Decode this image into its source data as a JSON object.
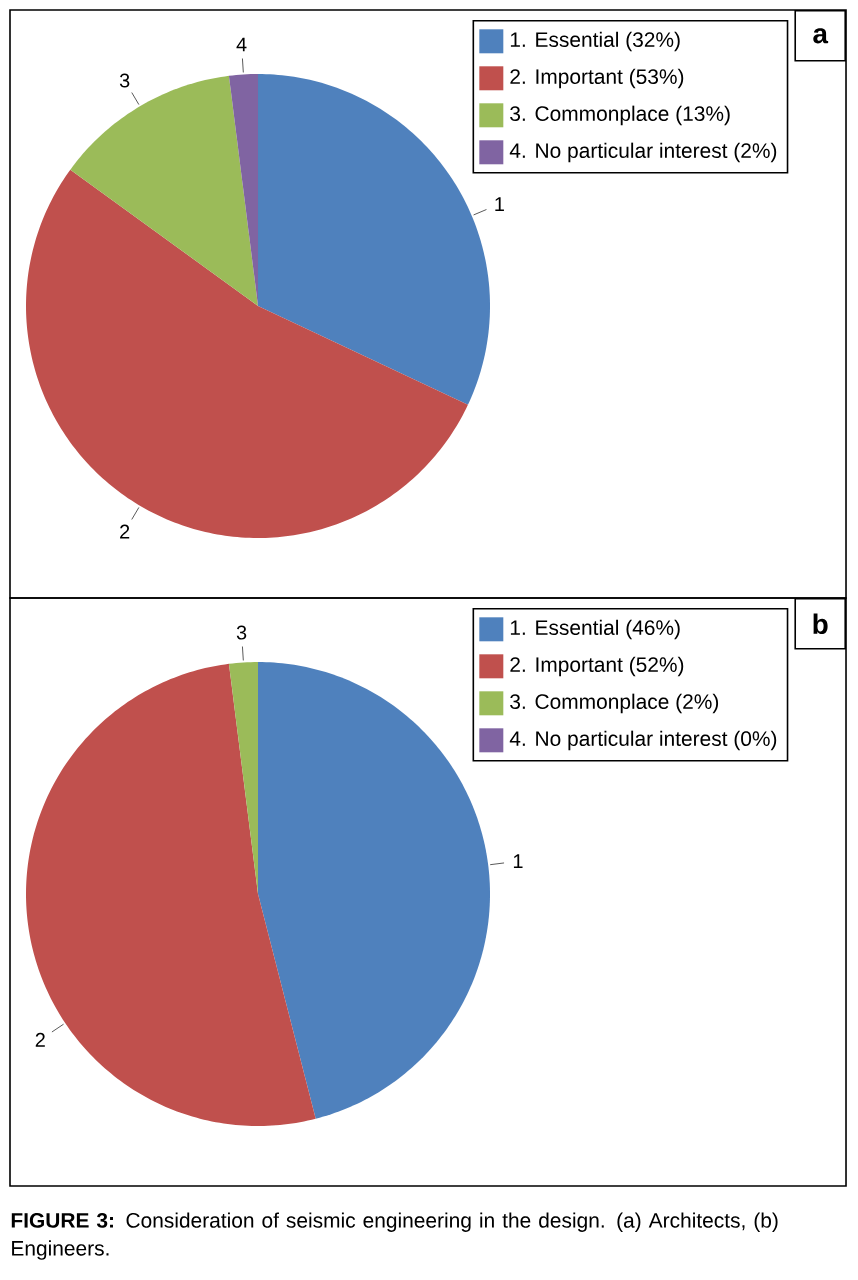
{
  "chart_data": [
    {
      "type": "pie",
      "title": "a",
      "categories": [
        "1. Essential (32%)",
        "2. Important (53%)",
        "3. Commonplace (13%)",
        "4. No particular interest (2%)"
      ],
      "values": [
        32,
        53,
        13,
        2
      ],
      "colors": [
        "#4f81bd",
        "#c0504d",
        "#9bbb59",
        "#8064a2"
      ],
      "legend": "top right",
      "annotations": [
        {
          "text": "1",
          "x": "1. Essential (32%)"
        },
        {
          "text": "2",
          "x": "2. Important (53%)"
        },
        {
          "text": "3",
          "x": "3. Commonplace (13%)"
        },
        {
          "text": "4",
          "x": "4. No particular interest (2%)"
        }
      ]
    },
    {
      "type": "pie",
      "title": "b",
      "categories": [
        "1. Essential (46%)",
        "2. Important (52%)",
        "3. Commonplace (2%)",
        "4. No particular interest (0%)"
      ],
      "values": [
        46,
        52,
        2,
        0
      ],
      "colors": [
        "#4f81bd",
        "#c0504d",
        "#9bbb59",
        "#8064a2"
      ],
      "legend": "top right",
      "annotations": [
        {
          "text": "1",
          "x": "1. Essential (46%)"
        },
        {
          "text": "2",
          "x": "2. Important (52%)"
        },
        {
          "text": "3",
          "x": "3. Commonplace (2%)"
        },
        "**FIGURE 3:** Consideration of seismic engineering in the design. (a) Architects, (b) Engineers."
      ]
    }
  ]
}
